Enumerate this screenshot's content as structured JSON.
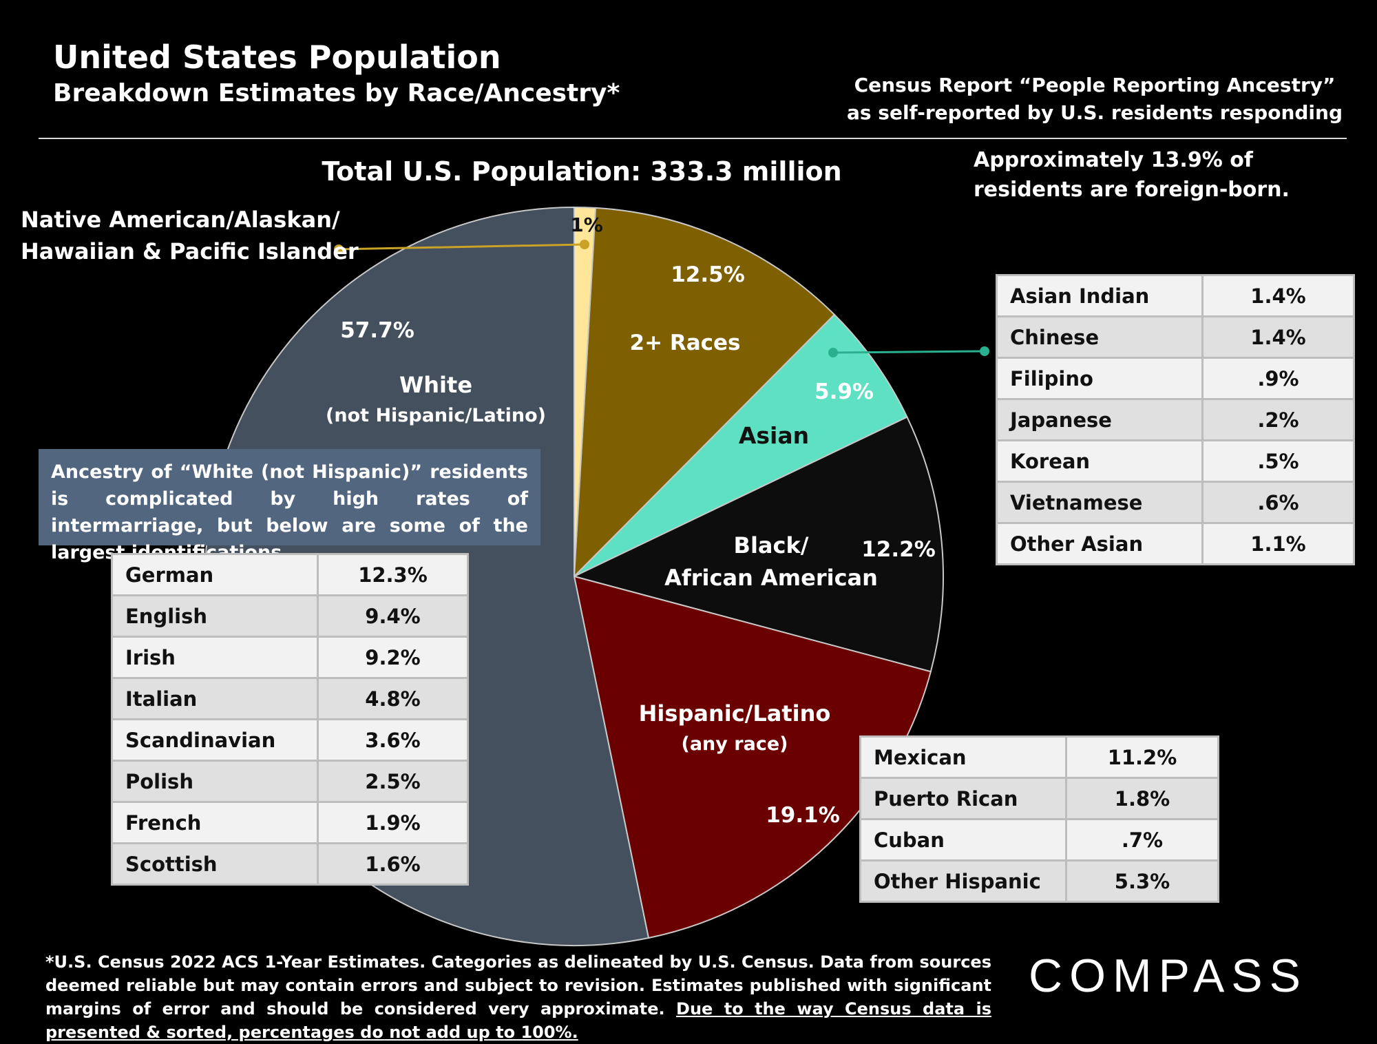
{
  "header": {
    "title": "United States Population",
    "subtitle": "Breakdown Estimates by Race/Ancestry*",
    "census_note_1": "Census Report “People Reporting Ancestry”",
    "census_note_2": "as self-reported by U.S. residents responding"
  },
  "foreign_note_1": "Approximately 13.9% of",
  "foreign_note_2": "residents are foreign-born.",
  "chart_data": {
    "type": "pie",
    "title": "Total U.S. Population:  333.3 million",
    "slices": [
      {
        "label": "",
        "value": 1,
        "value_label": "1%",
        "color": "#ffe699"
      },
      {
        "label": "2+ Races",
        "value": 12.5,
        "value_label": "12.5%",
        "color": "#7f6000"
      },
      {
        "label": "Asian",
        "value": 5.9,
        "value_label": "5.9%",
        "color": "#5ee0c2"
      },
      {
        "label_1": "Black/",
        "label_2": "African American",
        "value": 12.2,
        "value_label": "12.2%",
        "color": "#0d0d0d"
      },
      {
        "label_1": "Hispanic/Latino",
        "label_2": "(any race)",
        "value": 19.1,
        "value_label": "19.1%",
        "color": "#6b0000"
      },
      {
        "label_1": "White",
        "label_2": "(not Hispanic/Latino)",
        "value": 57.7,
        "value_label": "57.7%",
        "color": "#44505e"
      }
    ]
  },
  "native_label_1": "Native American/Alaskan/",
  "native_label_2": "Hawaiian & Pacific Islander",
  "white_note": "Ancestry of “White (not Hispanic)” residents is complicated by high rates of intermarriage, but below are some of the largest identifications.",
  "white_ancestry": [
    {
      "name": "German",
      "value": "12.3%"
    },
    {
      "name": "English",
      "value": "9.4%"
    },
    {
      "name": "Irish",
      "value": "9.2%"
    },
    {
      "name": "Italian",
      "value": "4.8%"
    },
    {
      "name": "Scandinavian",
      "value": "3.6%"
    },
    {
      "name": "Polish",
      "value": "2.5%"
    },
    {
      "name": "French",
      "value": "1.9%"
    },
    {
      "name": "Scottish",
      "value": "1.6%"
    }
  ],
  "asian_breakdown": [
    {
      "name": "Asian Indian",
      "value": "1.4%"
    },
    {
      "name": "Chinese",
      "value": "1.4%"
    },
    {
      "name": "Filipino",
      "value": ".9%"
    },
    {
      "name": "Japanese",
      "value": ".2%"
    },
    {
      "name": "Korean",
      "value": ".5%"
    },
    {
      "name": "Vietnamese",
      "value": ".6%"
    },
    {
      "name": "Other Asian",
      "value": "1.1%"
    }
  ],
  "hispanic_breakdown": [
    {
      "name": "Mexican",
      "value": "11.2%"
    },
    {
      "name": "Puerto Rican",
      "value": "1.8%"
    },
    {
      "name": "Cuban",
      "value": ".7%"
    },
    {
      "name": "Other Hispanic",
      "value": "5.3%"
    }
  ],
  "footnote_main": "*U.S. Census 2022 ACS 1-Year Estimates. Categories as delineated by U.S. Census. Data from sources deemed reliable but may contain errors and subject to revision. Estimates published with significant margins of error and should be considered very approximate.",
  "footnote_underlined": "Due to the way Census data is presented & sorted, percentages do not add up to 100%.",
  "logo": "COMPASS",
  "colors": {
    "native_connector": "#c9a227",
    "asian_connector": "#2bb08f",
    "note_box": "#52667f"
  }
}
